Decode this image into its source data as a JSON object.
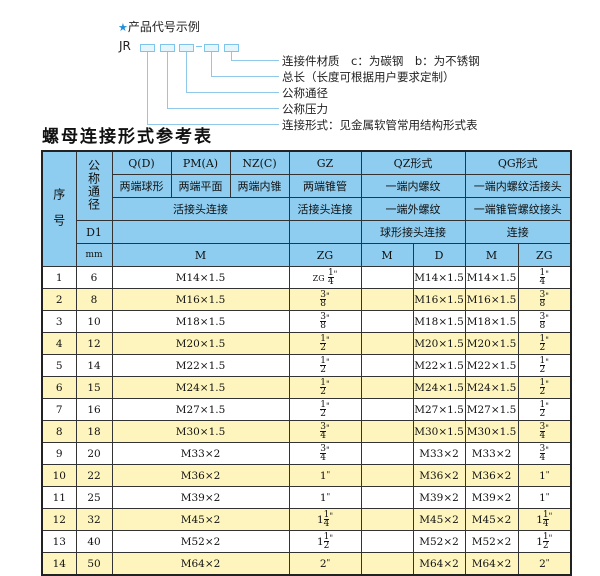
{
  "code_example": {
    "title": "产品代号示例",
    "prefix": "JR",
    "labels": [
      "连接件材质　c：为碳钢　b：为不锈钢",
      "总长（长度可根据用户要求定制）",
      "公称通径",
      "公称压力",
      "连接形式：见金属软管常用结构形式表"
    ]
  },
  "table_title": "螺母连接形式参考表",
  "header": {
    "seq": "序　号",
    "nominal": "公称通径",
    "d1": "D1",
    "mm": "mm",
    "q": "Q(D)",
    "pm": "PM(A)",
    "nz": "NZ(C)",
    "gz": "GZ",
    "qz": "QZ形式",
    "qg": "QG形式",
    "q_desc": "两端球形",
    "pm_desc": "两端平面",
    "nz_desc": "两端内锥",
    "gz_desc": "两端锥管",
    "qz_desc": "一端内螺纹",
    "qg_desc": "一端内螺纹活接头",
    "union1": "活接头连接",
    "union2": "活接头连接",
    "qz_desc2": "一端外螺纹",
    "qg_desc2": "一端锥管螺纹接头",
    "qz_desc3": "球形接头连接",
    "qg_desc3": "连接",
    "m": "M",
    "zg": "ZG",
    "qz_m": "M",
    "qz_d": "D",
    "qg_m": "M",
    "qg_zg": "ZG"
  },
  "rows": [
    {
      "no": "1",
      "dn": "6",
      "m": "M14×1.5",
      "zg": {
        "prefix": "ZG",
        "whole": "",
        "num": "1",
        "den": "4"
      },
      "qz_m": "",
      "qz_d": "M14×1.5",
      "qg_m": "M14×1.5",
      "qg_zg": {
        "whole": "",
        "num": "1",
        "den": "4"
      }
    },
    {
      "no": "2",
      "dn": "8",
      "m": "M16×1.5",
      "zg": {
        "whole": "",
        "num": "3",
        "den": "8"
      },
      "qz_m": "",
      "qz_d": "M16×1.5",
      "qg_m": "M16×1.5",
      "qg_zg": {
        "whole": "",
        "num": "3",
        "den": "8"
      }
    },
    {
      "no": "3",
      "dn": "10",
      "m": "M18×1.5",
      "zg": {
        "whole": "",
        "num": "3",
        "den": "8"
      },
      "qz_m": "",
      "qz_d": "M18×1.5",
      "qg_m": "M18×1.5",
      "qg_zg": {
        "whole": "",
        "num": "3",
        "den": "8"
      }
    },
    {
      "no": "4",
      "dn": "12",
      "m": "M20×1.5",
      "zg": {
        "whole": "",
        "num": "1",
        "den": "2"
      },
      "qz_m": "",
      "qz_d": "M20×1.5",
      "qg_m": "M20×1.5",
      "qg_zg": {
        "whole": "",
        "num": "1",
        "den": "2"
      }
    },
    {
      "no": "5",
      "dn": "14",
      "m": "M22×1.5",
      "zg": {
        "whole": "",
        "num": "1",
        "den": "2"
      },
      "qz_m": "",
      "qz_d": "M22×1.5",
      "qg_m": "M22×1.5",
      "qg_zg": {
        "whole": "",
        "num": "1",
        "den": "2"
      }
    },
    {
      "no": "6",
      "dn": "15",
      "m": "M24×1.5",
      "zg": {
        "whole": "",
        "num": "1",
        "den": "2"
      },
      "qz_m": "",
      "qz_d": "M24×1.5",
      "qg_m": "M24×1.5",
      "qg_zg": {
        "whole": "",
        "num": "1",
        "den": "2"
      }
    },
    {
      "no": "7",
      "dn": "16",
      "m": "M27×1.5",
      "zg": {
        "whole": "",
        "num": "1",
        "den": "2"
      },
      "qz_m": "",
      "qz_d": "M27×1.5",
      "qg_m": "M27×1.5",
      "qg_zg": {
        "whole": "",
        "num": "1",
        "den": "2"
      }
    },
    {
      "no": "8",
      "dn": "18",
      "m": "M30×1.5",
      "zg": {
        "whole": "",
        "num": "3",
        "den": "4"
      },
      "qz_m": "",
      "qz_d": "M30×1.5",
      "qg_m": "M30×1.5",
      "qg_zg": {
        "whole": "",
        "num": "3",
        "den": "4"
      }
    },
    {
      "no": "9",
      "dn": "20",
      "m": "M33×2",
      "zg": {
        "whole": "",
        "num": "3",
        "den": "4"
      },
      "qz_m": "",
      "qz_d": "M33×2",
      "qg_m": "M33×2",
      "qg_zg": {
        "whole": "",
        "num": "3",
        "den": "4"
      }
    },
    {
      "no": "10",
      "dn": "22",
      "m": "M36×2",
      "zg": {
        "whole": "1"
      },
      "qz_m": "",
      "qz_d": "M36×2",
      "qg_m": "M36×2",
      "qg_zg": {
        "whole": "1"
      }
    },
    {
      "no": "11",
      "dn": "25",
      "m": "M39×2",
      "zg": {
        "whole": "1"
      },
      "qz_m": "",
      "qz_d": "M39×2",
      "qg_m": "M39×2",
      "qg_zg": {
        "whole": "1"
      }
    },
    {
      "no": "12",
      "dn": "32",
      "m": "M45×2",
      "zg": {
        "whole": "1",
        "num": "1",
        "den": "4"
      },
      "qz_m": "",
      "qz_d": "M45×2",
      "qg_m": "M45×2",
      "qg_zg": {
        "whole": "1",
        "num": "1",
        "den": "4"
      }
    },
    {
      "no": "13",
      "dn": "40",
      "m": "M52×2",
      "zg": {
        "whole": "1",
        "num": "1",
        "den": "2"
      },
      "qz_m": "",
      "qz_d": "M52×2",
      "qg_m": "M52×2",
      "qg_zg": {
        "whole": "1",
        "num": "1",
        "den": "2"
      }
    },
    {
      "no": "14",
      "dn": "50",
      "m": "M64×2",
      "zg": {
        "whole": "2"
      },
      "qz_m": "",
      "qz_d": "M64×2",
      "qg_m": "M64×2",
      "qg_zg": {
        "whole": "2"
      }
    }
  ],
  "colors": {
    "header_bg": "#8ecdf0",
    "alt_row_bg": "#fdf5bd",
    "star": "#1e90d8",
    "leader_line": "#8fc8e8"
  }
}
